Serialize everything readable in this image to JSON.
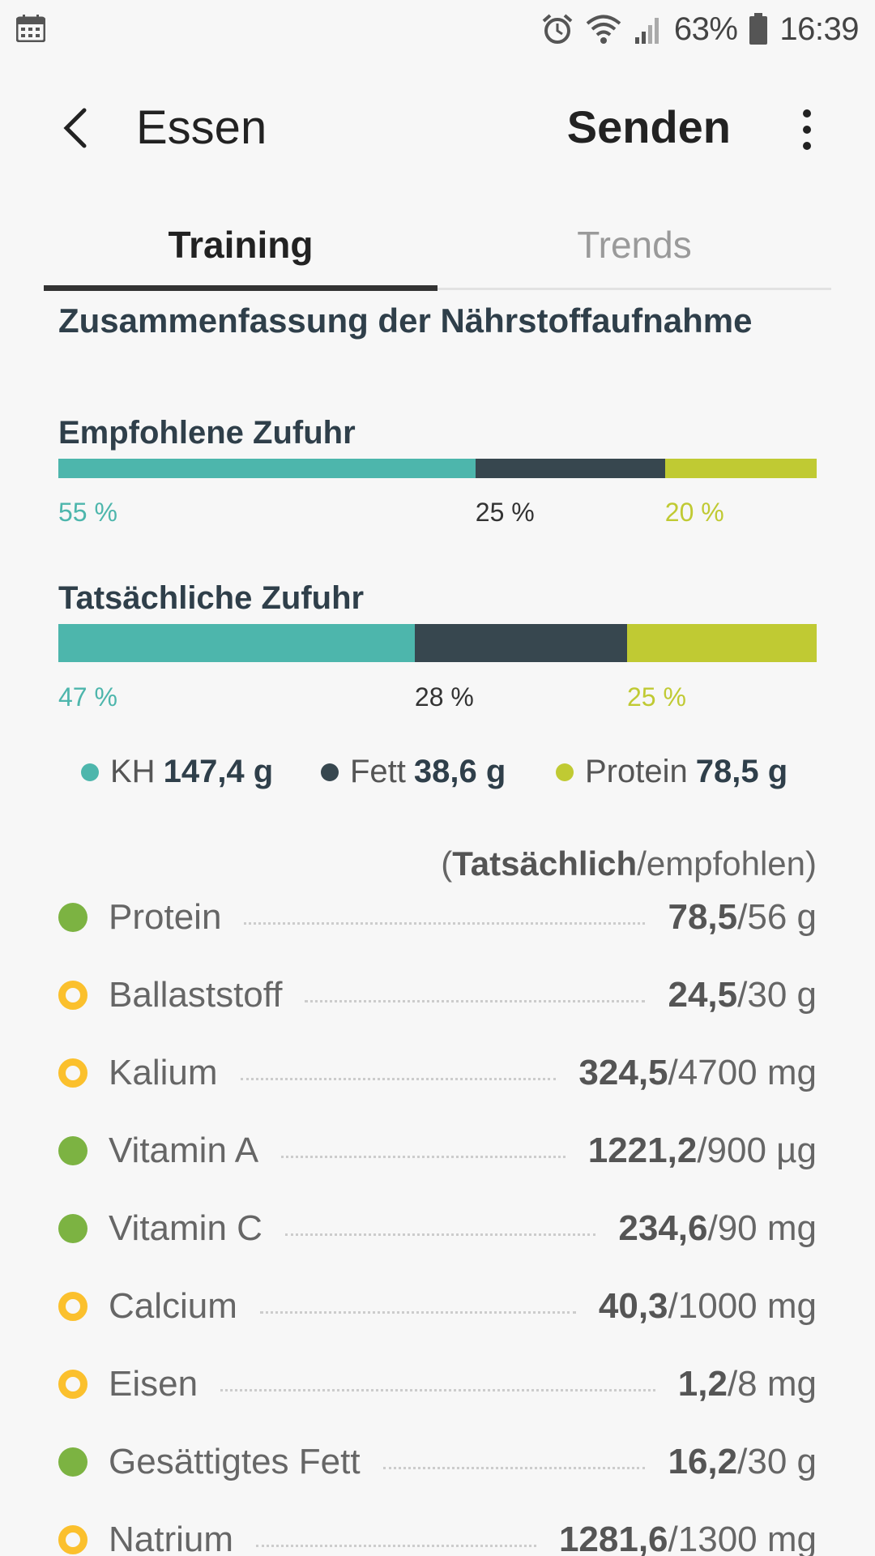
{
  "status_bar": {
    "battery": "63%",
    "time": "16:39",
    "icons": [
      "calendar-icon",
      "alarm-icon",
      "wifi-icon",
      "signal-icon",
      "battery-icon"
    ]
  },
  "header": {
    "title": "Essen",
    "send_label": "Senden"
  },
  "tabs": [
    {
      "label": "Training",
      "active": true
    },
    {
      "label": "Trends",
      "active": false
    }
  ],
  "summary": {
    "title": "Zusammenfassung der Nährstoffaufnahme",
    "recommended": {
      "label": "Empfohlene Zufuhr",
      "carbs_pct": "55 %",
      "fat_pct": "25 %",
      "protein_pct": "20 %",
      "values": [
        55,
        25,
        20
      ]
    },
    "actual": {
      "label": "Tatsächliche Zufuhr",
      "carbs_pct": "47 %",
      "fat_pct": "28 %",
      "protein_pct": "25 %",
      "values": [
        47,
        28,
        25
      ]
    },
    "colors": {
      "carbs": "#4db6ac",
      "fat": "#37474f",
      "protein": "#c0ca33"
    },
    "legend": [
      {
        "name": "KH",
        "amount": "147,4 g"
      },
      {
        "name": "Fett",
        "amount": "38,6 g"
      },
      {
        "name": "Protein",
        "amount": "78,5 g"
      }
    ]
  },
  "nutrients": {
    "hint_open": "(",
    "hint_actual": "Tatsächlich",
    "hint_rest": "/empfohlen)",
    "items": [
      {
        "name": "Protein",
        "actual": "78,5",
        "target": "/56 g",
        "status": "good"
      },
      {
        "name": "Ballaststoff",
        "actual": "24,5",
        "target": "/30 g",
        "status": "warn"
      },
      {
        "name": "Kalium",
        "actual": "324,5",
        "target": "/4700 mg",
        "status": "warn"
      },
      {
        "name": "Vitamin A",
        "actual": "1221,2",
        "target": "/900 µg",
        "status": "good"
      },
      {
        "name": "Vitamin C",
        "actual": "234,6",
        "target": "/90 mg",
        "status": "good"
      },
      {
        "name": "Calcium",
        "actual": "40,3",
        "target": "/1000 mg",
        "status": "warn"
      },
      {
        "name": "Eisen",
        "actual": "1,2",
        "target": "/8 mg",
        "status": "warn"
      },
      {
        "name": "Gesättigtes Fett",
        "actual": "16,2",
        "target": "/30 g",
        "status": "good"
      },
      {
        "name": "Natrium",
        "actual": "1281,6",
        "target": "/1300 mg",
        "status": "warn"
      }
    ]
  }
}
